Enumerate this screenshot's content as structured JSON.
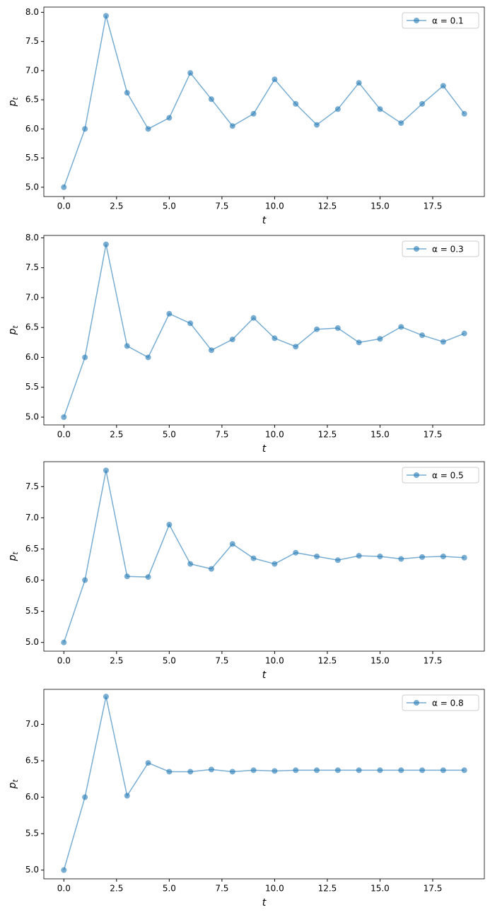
{
  "chart_data": [
    {
      "type": "line",
      "xlabel": "t",
      "ylabel": {
        "base": "p",
        "sub": "t"
      },
      "legend": "upper right",
      "color": "#1f77b4",
      "xlim": [
        -0.95,
        19.95
      ],
      "ylim": [
        4.84,
        8.09
      ],
      "xticks": [
        {
          "value": 0,
          "label": "0.0"
        },
        2.5,
        {
          "value": 5,
          "label": "5.0"
        },
        7.5,
        {
          "value": 10,
          "label": "10.0"
        },
        12.5,
        {
          "value": 15,
          "label": "15.0"
        },
        17.5
      ],
      "yticks": [
        {
          "value": 5,
          "label": "5.0"
        },
        5.5,
        {
          "value": 6,
          "label": "6.0"
        },
        6.5,
        {
          "value": 7,
          "label": "7.0"
        },
        7.5,
        {
          "value": 8,
          "label": "8.0"
        }
      ],
      "x": [
        0,
        1,
        2,
        3,
        4,
        5,
        6,
        7,
        8,
        9,
        10,
        11,
        12,
        13,
        14,
        15,
        16,
        17,
        18,
        19
      ],
      "series": [
        {
          "name": "α = 0.1",
          "values": [
            5,
            6,
            7.94,
            6.62,
            6.0,
            6.19,
            6.96,
            6.51,
            6.05,
            6.26,
            6.85,
            6.43,
            6.07,
            6.34,
            6.79,
            6.34,
            6.1,
            6.43,
            6.74,
            6.26
          ]
        }
      ]
    },
    {
      "type": "line",
      "xlabel": "t",
      "ylabel": {
        "base": "p",
        "sub": "t"
      },
      "legend": "upper right",
      "color": "#1f77b4",
      "xlim": [
        -0.95,
        19.95
      ],
      "ylim": [
        4.87,
        8.04
      ],
      "xticks": [
        {
          "value": 0,
          "label": "0.0"
        },
        2.5,
        {
          "value": 5,
          "label": "5.0"
        },
        7.5,
        {
          "value": 10,
          "label": "10.0"
        },
        12.5,
        {
          "value": 15,
          "label": "15.0"
        },
        17.5
      ],
      "yticks": [
        {
          "value": 5,
          "label": "5.0"
        },
        5.5,
        {
          "value": 6,
          "label": "6.0"
        },
        6.5,
        {
          "value": 7,
          "label": "7.0"
        },
        7.5,
        {
          "value": 8,
          "label": "8.0"
        }
      ],
      "x": [
        0,
        1,
        2,
        3,
        4,
        5,
        6,
        7,
        8,
        9,
        10,
        11,
        12,
        13,
        14,
        15,
        16,
        17,
        18,
        19
      ],
      "series": [
        {
          "name": "α = 0.3",
          "values": [
            5,
            6,
            7.89,
            6.19,
            6.0,
            6.73,
            6.57,
            6.12,
            6.3,
            6.66,
            6.32,
            6.18,
            6.47,
            6.49,
            6.25,
            6.31,
            6.51,
            6.37,
            6.26,
            6.4
          ]
        }
      ]
    },
    {
      "type": "line",
      "xlabel": "t",
      "ylabel": {
        "base": "p",
        "sub": "t"
      },
      "legend": "upper right",
      "color": "#1f77b4",
      "xlim": [
        -0.95,
        19.95
      ],
      "ylim": [
        4.86,
        7.9
      ],
      "xticks": [
        {
          "value": 0,
          "label": "0.0"
        },
        2.5,
        {
          "value": 5,
          "label": "5.0"
        },
        7.5,
        {
          "value": 10,
          "label": "10.0"
        },
        12.5,
        {
          "value": 15,
          "label": "15.0"
        },
        17.5
      ],
      "yticks": [
        {
          "value": 5,
          "label": "5.0"
        },
        5.5,
        {
          "value": 6,
          "label": "6.0"
        },
        6.5,
        {
          "value": 7,
          "label": "7.0"
        },
        7.5
      ],
      "x": [
        0,
        1,
        2,
        3,
        4,
        5,
        6,
        7,
        8,
        9,
        10,
        11,
        12,
        13,
        14,
        15,
        16,
        17,
        18,
        19
      ],
      "series": [
        {
          "name": "α = 0.5",
          "values": [
            5,
            6,
            7.76,
            6.06,
            6.05,
            6.89,
            6.26,
            6.18,
            6.58,
            6.35,
            6.26,
            6.44,
            6.38,
            6.32,
            6.39,
            6.38,
            6.34,
            6.37,
            6.38,
            6.36
          ]
        }
      ]
    },
    {
      "type": "line",
      "xlabel": "t",
      "ylabel": {
        "base": "p",
        "sub": "t"
      },
      "legend": "upper right",
      "color": "#1f77b4",
      "xlim": [
        -0.95,
        19.95
      ],
      "ylim": [
        4.88,
        7.48
      ],
      "xticks": [
        {
          "value": 0,
          "label": "0.0"
        },
        2.5,
        {
          "value": 5,
          "label": "5.0"
        },
        7.5,
        {
          "value": 10,
          "label": "10.0"
        },
        12.5,
        {
          "value": 15,
          "label": "15.0"
        },
        17.5
      ],
      "yticks": [
        {
          "value": 5,
          "label": "5.0"
        },
        5.5,
        {
          "value": 6,
          "label": "6.0"
        },
        6.5,
        {
          "value": 7,
          "label": "7.0"
        }
      ],
      "x": [
        0,
        1,
        2,
        3,
        4,
        5,
        6,
        7,
        8,
        9,
        10,
        11,
        12,
        13,
        14,
        15,
        16,
        17,
        18,
        19
      ],
      "series": [
        {
          "name": "α = 0.8",
          "values": [
            5,
            6,
            7.38,
            6.02,
            6.47,
            6.35,
            6.35,
            6.38,
            6.35,
            6.37,
            6.36,
            6.37,
            6.37,
            6.37,
            6.37,
            6.37,
            6.37,
            6.37,
            6.37,
            6.37
          ]
        }
      ]
    }
  ]
}
